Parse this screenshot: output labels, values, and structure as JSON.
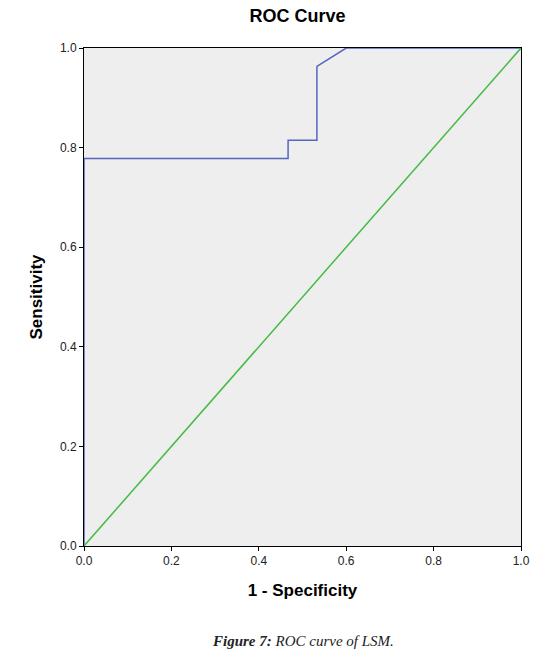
{
  "chart_data": {
    "type": "line",
    "title": "ROC Curve",
    "x_label": "1 - Specificity",
    "y_label": "Sensitivity",
    "caption": "Figure 7: ROC curve of LSM.",
    "series": [
      {
        "color": "#5566c0",
        "x": [
          0,
          0,
          0.467,
          0.467,
          0.533,
          0.533,
          0.6,
          1.0
        ],
        "values": [
          0,
          0.778,
          0.778,
          0.815,
          0.815,
          0.963,
          1.0,
          1.0
        ]
      },
      {
        "color": "#44bb44",
        "x": [
          0,
          1.0
        ],
        "values": [
          0,
          1.0
        ]
      }
    ],
    "xlim": [
      0,
      1.0
    ],
    "ylim": [
      0,
      1.0
    ],
    "xticks": [
      {
        "value": 0,
        "label": "0.0"
      },
      0.2,
      0.4,
      0.6,
      0.8,
      {
        "value": 1,
        "label": "1.0"
      }
    ],
    "yticks": [
      {
        "value": 0,
        "label": "0.0"
      },
      0.2,
      0.4,
      0.6,
      0.8,
      {
        "value": 1,
        "label": "1.0"
      }
    ],
    "grid": false
  }
}
